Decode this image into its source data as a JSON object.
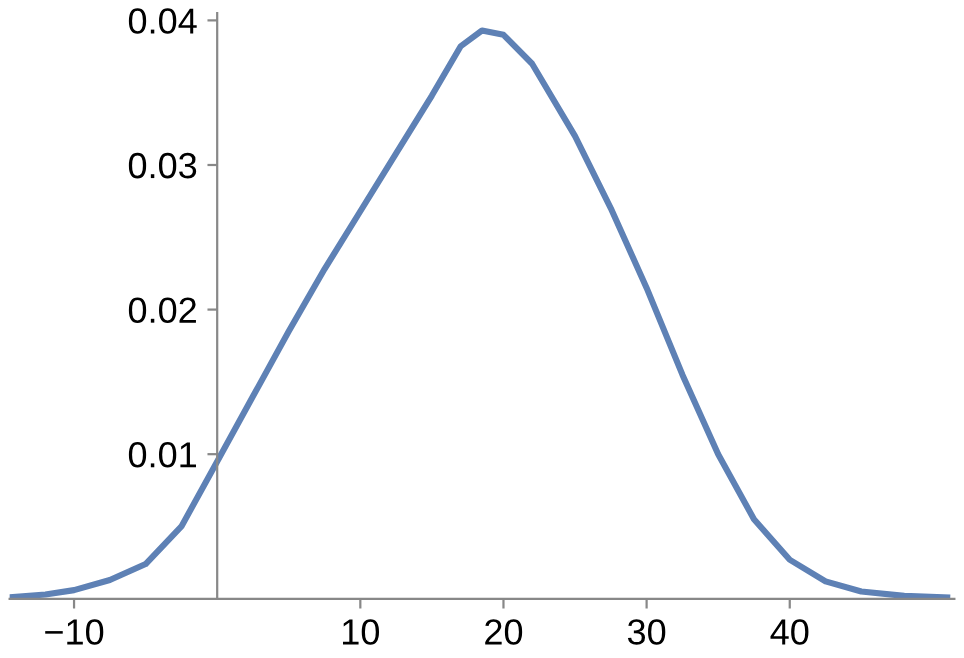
{
  "chart_data": {
    "type": "line",
    "x": [
      -14.5,
      -12,
      -10,
      -7.5,
      -5,
      -2.5,
      0,
      2.5,
      5,
      7.5,
      10,
      12.5,
      15,
      17,
      18.5,
      20,
      22,
      25,
      27.5,
      30,
      32.5,
      35,
      37.5,
      40,
      42.5,
      45,
      48,
      51
    ],
    "series": [
      {
        "color": "#5e81b5",
        "values": [
          0.0001,
          0.0003,
          0.0006,
          0.0013,
          0.0024,
          0.005,
          0.0095,
          0.014,
          0.0185,
          0.0228,
          0.0268,
          0.0308,
          0.0348,
          0.0382,
          0.0393,
          0.039,
          0.037,
          0.032,
          0.027,
          0.0215,
          0.0155,
          0.01,
          0.0055,
          0.0027,
          0.0012,
          0.0005,
          0.0002,
          0.0001
        ]
      }
    ],
    "xlim": [
      -14.5,
      51.5
    ],
    "ylim": [
      0,
      0.0405
    ],
    "xticks": [
      -10,
      10,
      20,
      30,
      40
    ],
    "yticks": [
      0.01,
      0.02,
      0.03,
      0.04
    ],
    "grid": false,
    "legend": false,
    "marker": "none",
    "line_style": "solid"
  }
}
